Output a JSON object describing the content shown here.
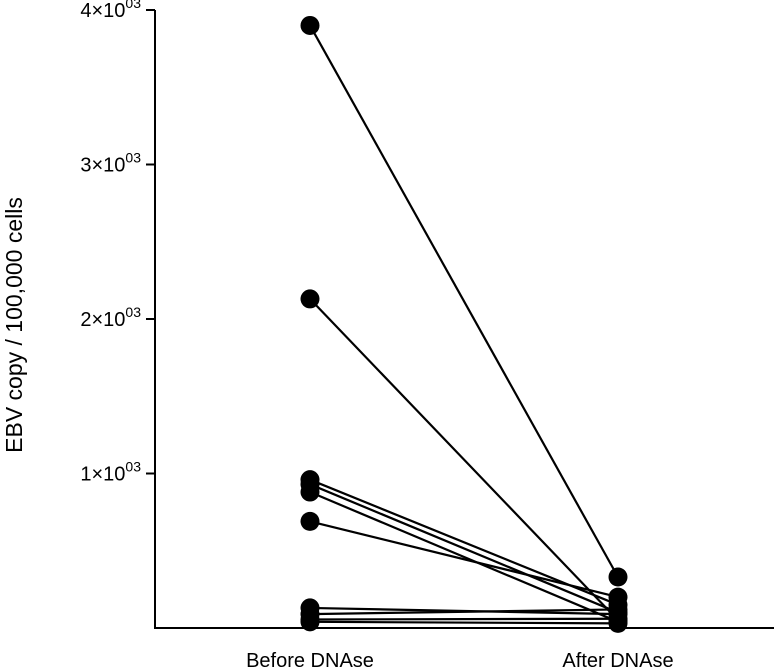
{
  "chart_data": {
    "type": "line",
    "subtype": "paired-dot-plot",
    "ylabel": "EBV copy / 100,000 cells",
    "xlabel": "",
    "categories": [
      "Before DNAse",
      "After DNAse"
    ],
    "ylim": [
      0,
      4000
    ],
    "yticks": [
      {
        "value": 1000,
        "mantissa": "1",
        "base": "×10",
        "exp": "03"
      },
      {
        "value": 2000,
        "mantissa": "2",
        "base": "×10",
        "exp": "03"
      },
      {
        "value": 3000,
        "mantissa": "3",
        "base": "×10",
        "exp": "03"
      },
      {
        "value": 4000,
        "mantissa": "4",
        "base": "×10",
        "exp": "03"
      }
    ],
    "pairs": [
      {
        "before": 3900,
        "after": 330
      },
      {
        "before": 2130,
        "after": 50
      },
      {
        "before": 960,
        "after": 150
      },
      {
        "before": 930,
        "after": 100
      },
      {
        "before": 880,
        "after": 40
      },
      {
        "before": 690,
        "after": 200
      },
      {
        "before": 130,
        "after": 90
      },
      {
        "before": 90,
        "after": 120
      },
      {
        "before": 55,
        "after": 60
      },
      {
        "before": 40,
        "after": 30
      }
    ],
    "grid": false,
    "legend": "none",
    "marker_color": "#000000",
    "line_color": "#000000"
  }
}
